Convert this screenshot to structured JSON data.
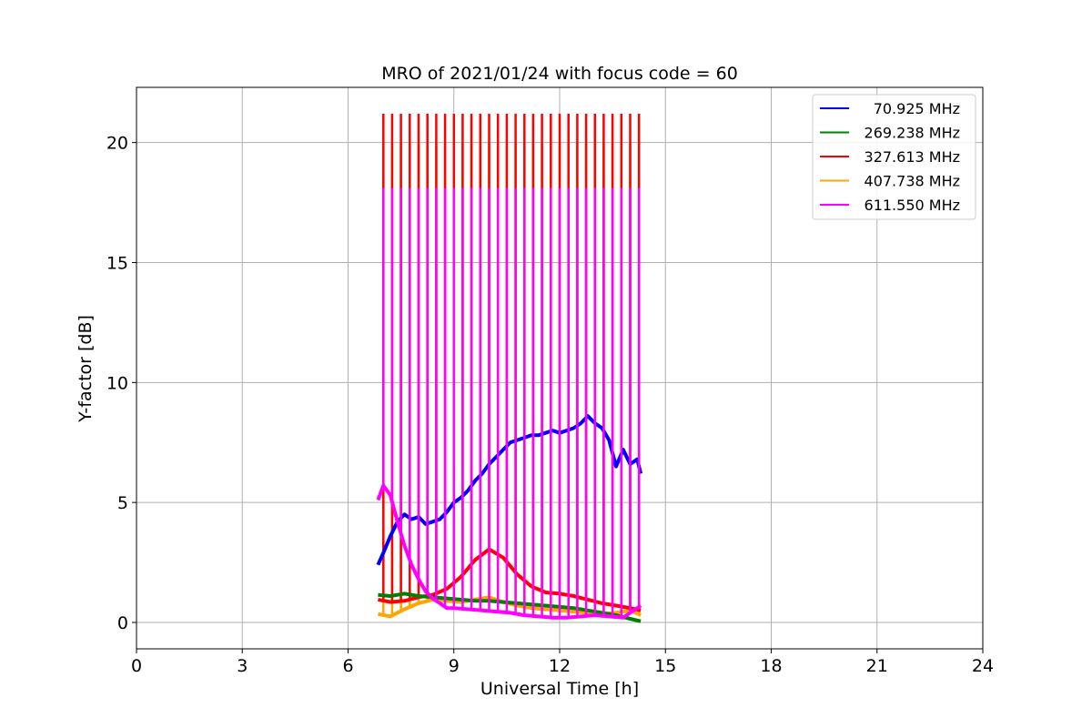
{
  "chart_data": {
    "type": "line",
    "title": "MRO of 2021/01/24 with focus code = 60",
    "xlabel": "Universal Time [h]",
    "ylabel": "Y-factor [dB]",
    "xlim": [
      0,
      24
    ],
    "ylim": [
      -1.1,
      22.3
    ],
    "xticks": [
      0,
      3,
      6,
      9,
      12,
      15,
      18,
      21,
      24
    ],
    "yticks": [
      0,
      5,
      10,
      15,
      20
    ],
    "grid": true,
    "legend_position": "top-right",
    "calibration_spikes": {
      "x": [
        7.0,
        7.25,
        7.5,
        7.75,
        8.0,
        8.25,
        8.5,
        8.75,
        9.0,
        9.25,
        9.5,
        9.75,
        10.0,
        10.25,
        10.5,
        10.75,
        11.0,
        11.25,
        11.5,
        11.75,
        12.0,
        12.25,
        12.5,
        12.75,
        13.0,
        13.25,
        13.5,
        13.75,
        14.0,
        14.25
      ],
      "peaks": {
        "327.613 MHz": 21.2,
        "407.738 MHz": 20.0,
        "611.550 MHz": 18.1
      }
    },
    "series": [
      {
        "name": "70.925 MHz",
        "color": "#0000ff",
        "x": [
          6.85,
          7.0,
          7.2,
          7.4,
          7.6,
          7.8,
          8.0,
          8.2,
          8.4,
          8.6,
          8.8,
          9.0,
          9.2,
          9.4,
          9.6,
          9.8,
          10.0,
          10.2,
          10.4,
          10.6,
          10.8,
          11.0,
          11.2,
          11.4,
          11.6,
          11.8,
          12.0,
          12.2,
          12.4,
          12.6,
          12.8,
          13.0,
          13.2,
          13.4,
          13.6,
          13.8,
          14.0,
          14.2,
          14.3
        ],
        "values": [
          2.4,
          2.9,
          3.6,
          4.2,
          4.5,
          4.3,
          4.4,
          4.1,
          4.2,
          4.3,
          4.6,
          5.0,
          5.2,
          5.5,
          5.9,
          6.2,
          6.6,
          6.9,
          7.2,
          7.5,
          7.6,
          7.7,
          7.8,
          7.8,
          7.9,
          8.0,
          7.9,
          8.0,
          8.1,
          8.3,
          8.6,
          8.3,
          8.1,
          7.6,
          6.5,
          7.2,
          6.6,
          6.8,
          6.2
        ]
      },
      {
        "name": "269.238 MHz",
        "color": "#008000",
        "x": [
          6.85,
          7.2,
          7.6,
          8.0,
          8.4,
          8.8,
          9.2,
          9.6,
          10.0,
          10.4,
          10.8,
          11.2,
          11.6,
          12.0,
          12.4,
          12.8,
          13.2,
          13.6,
          14.0,
          14.3
        ],
        "values": [
          1.15,
          1.1,
          1.2,
          1.1,
          1.05,
          1.0,
          0.95,
          0.9,
          0.9,
          0.85,
          0.8,
          0.75,
          0.7,
          0.65,
          0.6,
          0.5,
          0.4,
          0.3,
          0.15,
          0.05
        ]
      },
      {
        "name": "327.613 MHz",
        "color": "#ff0000",
        "x": [
          6.85,
          7.2,
          7.6,
          8.0,
          8.4,
          8.8,
          9.2,
          9.6,
          10.0,
          10.4,
          10.8,
          11.2,
          11.6,
          12.0,
          12.4,
          12.8,
          13.2,
          13.6,
          14.0,
          14.3
        ],
        "values": [
          0.95,
          0.85,
          0.9,
          1.05,
          1.15,
          1.4,
          1.9,
          2.6,
          3.05,
          2.7,
          2.0,
          1.5,
          1.25,
          1.2,
          1.1,
          0.95,
          0.8,
          0.7,
          0.6,
          0.5
        ]
      },
      {
        "name": "407.738 MHz",
        "color": "#ffa500",
        "x": [
          6.85,
          7.2,
          7.6,
          8.0,
          8.4,
          8.8,
          9.2,
          9.6,
          10.0,
          10.4,
          10.8,
          11.2,
          11.6,
          12.0,
          12.4,
          12.8,
          13.2,
          13.6,
          14.0,
          14.3
        ],
        "values": [
          0.35,
          0.25,
          0.55,
          0.8,
          0.95,
          0.9,
          0.85,
          0.95,
          1.05,
          0.85,
          0.7,
          0.6,
          0.55,
          0.5,
          0.45,
          0.4,
          0.35,
          0.4,
          0.5,
          0.3
        ]
      },
      {
        "name": "611.550 MHz",
        "color": "#ff00ff",
        "x": [
          6.85,
          7.0,
          7.2,
          7.4,
          7.6,
          7.8,
          8.0,
          8.2,
          8.4,
          8.6,
          8.8,
          9.0,
          9.4,
          9.8,
          10.2,
          10.6,
          11.0,
          11.4,
          11.8,
          12.2,
          12.6,
          13.0,
          13.4,
          13.8,
          14.0,
          14.2,
          14.3
        ],
        "values": [
          5.1,
          5.7,
          5.3,
          4.2,
          3.2,
          2.4,
          1.8,
          1.3,
          1.0,
          0.8,
          0.6,
          0.6,
          0.55,
          0.5,
          0.45,
          0.4,
          0.3,
          0.25,
          0.2,
          0.2,
          0.25,
          0.3,
          0.25,
          0.2,
          0.4,
          0.6,
          0.7
        ]
      }
    ]
  }
}
